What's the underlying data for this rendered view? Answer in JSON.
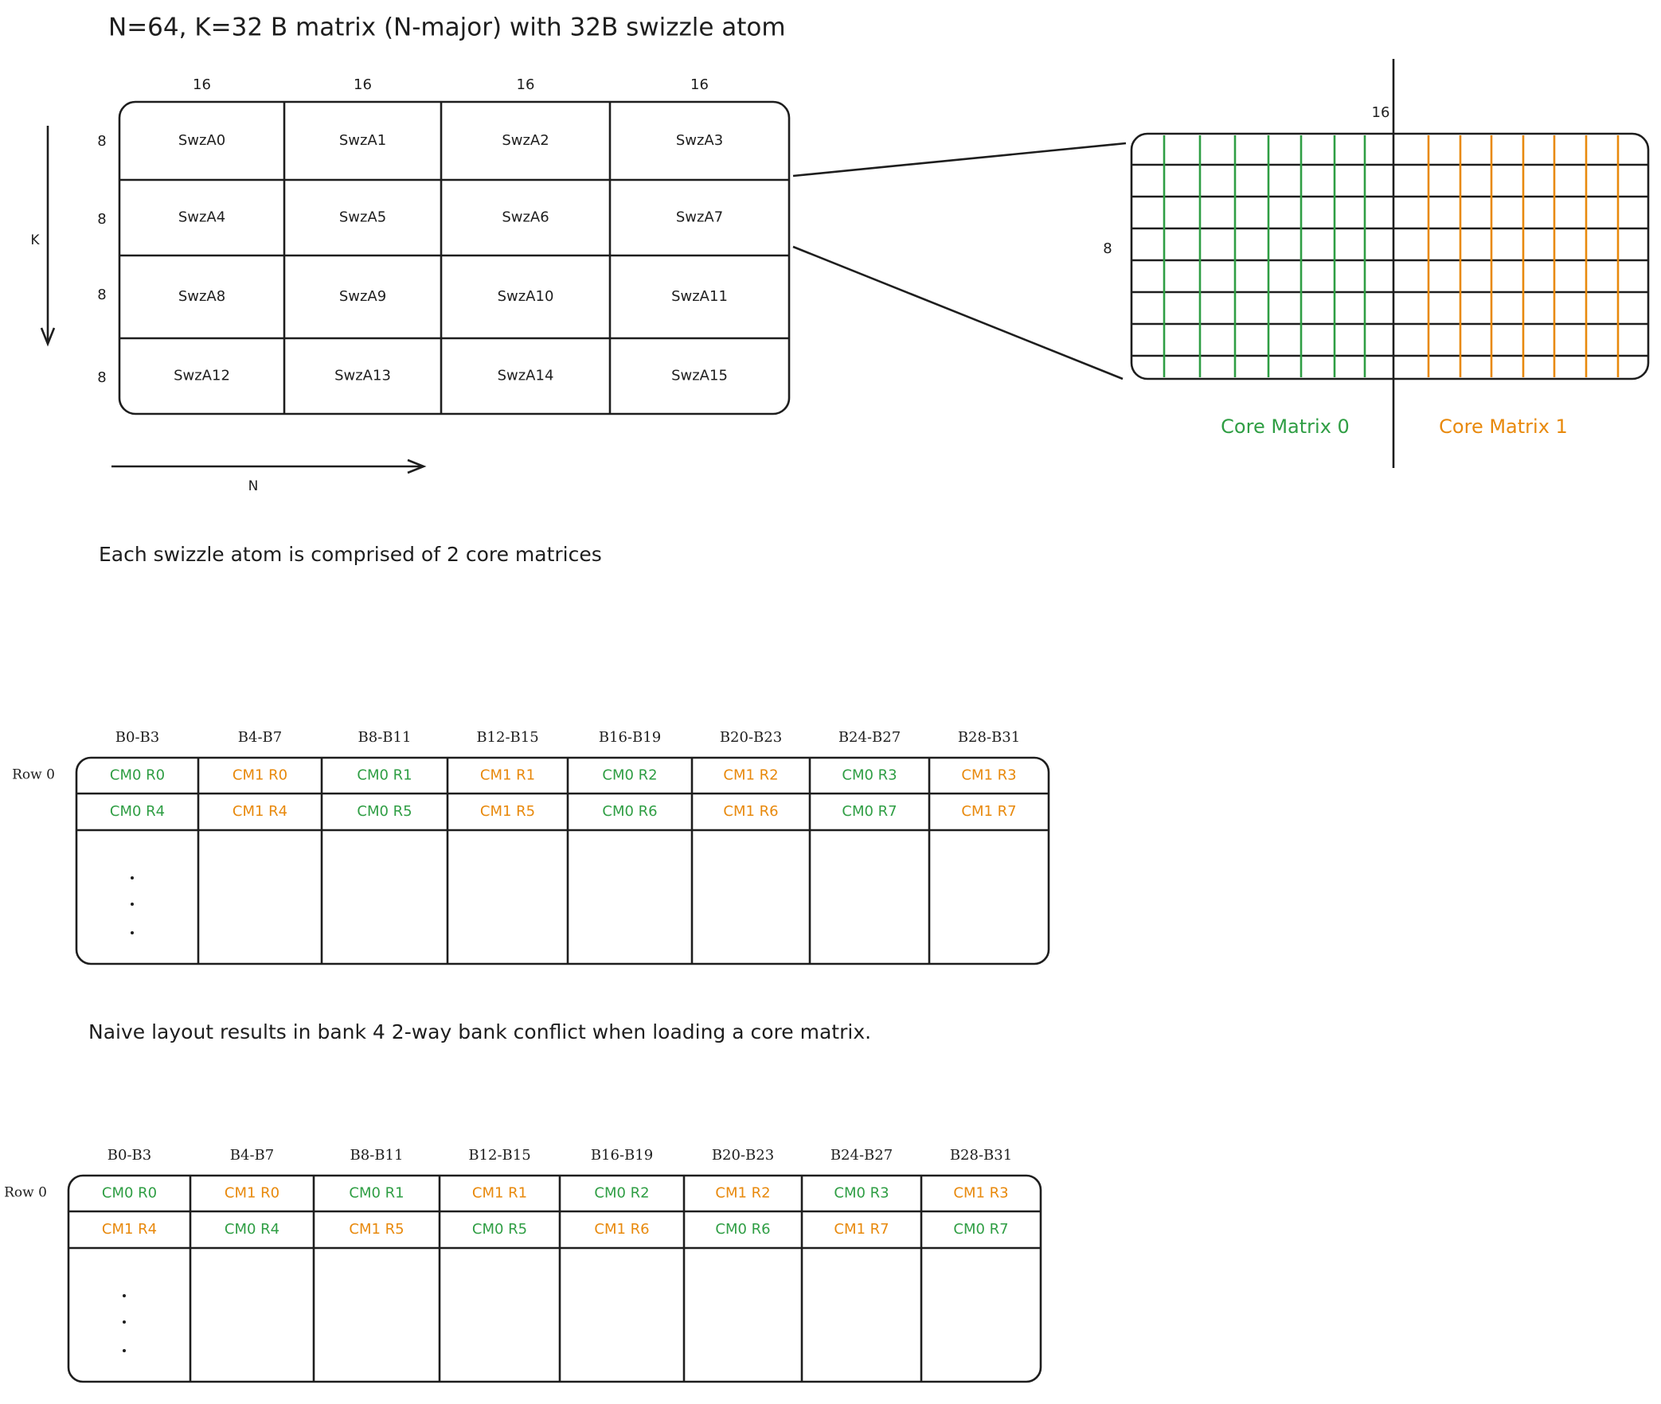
{
  "title": "N=64, K=32 B matrix (N-major) with 32B swizzle atom",
  "matrix": {
    "col_labels": [
      16,
      16,
      16,
      16
    ],
    "row_labels": [
      8,
      8,
      8,
      8
    ],
    "k_label": "K",
    "n_label": "N",
    "cells": [
      "SwzA0",
      "SwzA1",
      "SwzA2",
      "SwzA3",
      "SwzA4",
      "SwzA5",
      "SwzA6",
      "SwzA7",
      "SwzA8",
      "SwzA9",
      "SwzA10",
      "SwzA11",
      "SwzA12",
      "SwzA13",
      "SwzA14",
      "SwzA15"
    ]
  },
  "zoom": {
    "width_label": 16,
    "height_label": 8,
    "core_labels": [
      {
        "text": "Core Matrix 0",
        "color": "#2f9e44"
      },
      {
        "text": "Core Matrix 1",
        "color": "#e8890c"
      }
    ]
  },
  "caption_1": "Each swizzle atom is comprised of 2 core matrices",
  "table_1": {
    "headers": [
      "B0-B3",
      "B4-B7",
      "B8-B11",
      "B12-B15",
      "B16-B19",
      "B20-B23",
      "B24-B27",
      "B28-B31"
    ],
    "row_label": "Row 0",
    "rows": [
      [
        {
          "text": "CM0 R0",
          "color": "#2f9e44"
        },
        {
          "text": "CM1 R0",
          "color": "#e8890c"
        },
        {
          "text": "CM0 R1",
          "color": "#2f9e44"
        },
        {
          "text": "CM1 R1",
          "color": "#e8890c"
        },
        {
          "text": "CM0 R2",
          "color": "#2f9e44"
        },
        {
          "text": "CM1 R2",
          "color": "#e8890c"
        },
        {
          "text": "CM0 R3",
          "color": "#2f9e44"
        },
        {
          "text": "CM1 R3",
          "color": "#e8890c"
        }
      ],
      [
        {
          "text": "CM0 R4",
          "color": "#2f9e44"
        },
        {
          "text": "CM1 R4",
          "color": "#e8890c"
        },
        {
          "text": "CM0 R5",
          "color": "#2f9e44"
        },
        {
          "text": "CM1 R5",
          "color": "#e8890c"
        },
        {
          "text": "CM0 R6",
          "color": "#2f9e44"
        },
        {
          "text": "CM1 R6",
          "color": "#e8890c"
        },
        {
          "text": "CM0 R7",
          "color": "#2f9e44"
        },
        {
          "text": "CM1 R7",
          "color": "#e8890c"
        }
      ]
    ]
  },
  "caption_2": "Naive layout results in bank 4 2-way bank conflict when loading a core matrix.",
  "table_2": {
    "headers": [
      "B0-B3",
      "B4-B7",
      "B8-B11",
      "B12-B15",
      "B16-B19",
      "B20-B23",
      "B24-B27",
      "B28-B31"
    ],
    "row_label": "Row 0",
    "rows": [
      [
        {
          "text": "CM0 R0",
          "color": "#2f9e44"
        },
        {
          "text": "CM1 R0",
          "color": "#e8890c"
        },
        {
          "text": "CM0 R1",
          "color": "#2f9e44"
        },
        {
          "text": "CM1 R1",
          "color": "#e8890c"
        },
        {
          "text": "CM0 R2",
          "color": "#2f9e44"
        },
        {
          "text": "CM1 R2",
          "color": "#e8890c"
        },
        {
          "text": "CM0 R3",
          "color": "#2f9e44"
        },
        {
          "text": "CM1 R3",
          "color": "#e8890c"
        }
      ],
      [
        {
          "text": "CM1 R4",
          "color": "#e8890c"
        },
        {
          "text": "CM0 R4",
          "color": "#2f9e44"
        },
        {
          "text": "CM1 R5",
          "color": "#e8890c"
        },
        {
          "text": "CM0 R5",
          "color": "#2f9e44"
        },
        {
          "text": "CM1 R6",
          "color": "#e8890c"
        },
        {
          "text": "CM0 R6",
          "color": "#2f9e44"
        },
        {
          "text": "CM1 R7",
          "color": "#e8890c"
        },
        {
          "text": "CM0 R7",
          "color": "#2f9e44"
        }
      ]
    ]
  }
}
